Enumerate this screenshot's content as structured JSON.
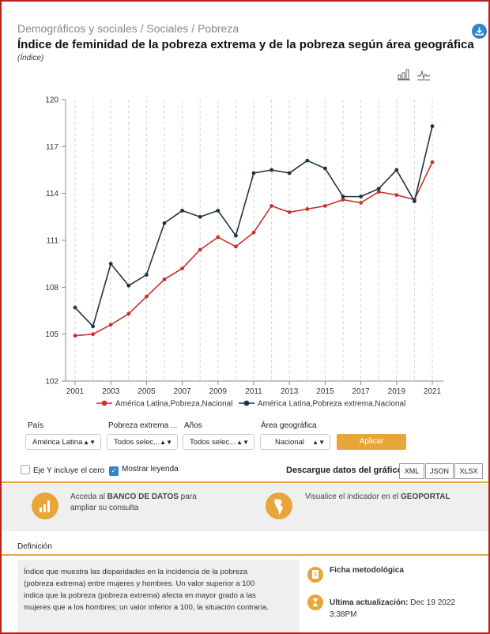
{
  "header": {
    "breadcrumb": "Demográficos y sociales / Sociales / Pobreza",
    "title": "Índice de feminidad de la pobreza extrema y de la pobreza según área geográfica",
    "unit": "(Índice)"
  },
  "colors": {
    "accent": "#e8a53a",
    "brand_blue": "#2e86c9",
    "series_red": "#c8312c",
    "series_dark": "#1f3344",
    "frame_red": "#b8231f"
  },
  "icons": [
    "download-icon",
    "bar-chart-icon",
    "line-chart-icon",
    "bar-chart-icon",
    "americas-map-icon",
    "document-icon",
    "hourglass-icon"
  ],
  "chart_data": {
    "type": "line",
    "title": "",
    "xlabel": "",
    "ylabel": "",
    "x": [
      2001,
      2002,
      2003,
      2004,
      2005,
      2006,
      2007,
      2008,
      2009,
      2010,
      2011,
      2012,
      2013,
      2014,
      2015,
      2016,
      2017,
      2018,
      2019,
      2020,
      2021
    ],
    "x_tick_labels": [
      "2001",
      "2003",
      "2005",
      "2007",
      "2009",
      "2011",
      "2013",
      "2015",
      "2017",
      "2019",
      "2021"
    ],
    "y_tick_labels": [
      "102",
      "105",
      "108",
      "111",
      "114",
      "117",
      "120"
    ],
    "ylim": [
      102,
      120
    ],
    "grid": "vertical dashed",
    "legend_position": "bottom",
    "series": [
      {
        "name": "América Latina,Pobreza,Nacional",
        "color": "#c8312c",
        "values": [
          104.9,
          105.0,
          105.6,
          106.3,
          107.4,
          108.5,
          109.2,
          110.4,
          111.2,
          110.6,
          111.5,
          113.2,
          112.8,
          113.0,
          113.2,
          113.6,
          113.4,
          114.1,
          113.9,
          113.6,
          116.0
        ]
      },
      {
        "name": "América Latina,Pobreza extrema,Nacional",
        "color": "#1f3344",
        "values": [
          106.7,
          105.5,
          109.5,
          108.1,
          108.8,
          112.1,
          112.9,
          112.5,
          112.9,
          111.3,
          115.3,
          115.5,
          115.3,
          116.1,
          115.6,
          113.8,
          113.8,
          114.3,
          115.5,
          113.5,
          118.3
        ]
      }
    ]
  },
  "filters": {
    "labels": [
      "País",
      "Pobreza extrema ...",
      "Años",
      "Área geográfica"
    ],
    "values": [
      "América Latina",
      "Todos selec...",
      "Todos selec...",
      "Nacional"
    ],
    "apply_label": "Aplicar"
  },
  "options": {
    "zero_label": "Eje Y incluye el cero",
    "legend_label": "Mostrar leyenda",
    "legend_checked": true,
    "download_label": "Descargue datos del gráfico:",
    "formats": [
      "XML",
      "JSON",
      "XLSX"
    ]
  },
  "promo": {
    "bank_prefix": "Acceda al ",
    "bank_strong": "BANCO DE DATOS",
    "bank_suffix": " para",
    "bank_line2": "ampliar su consulta",
    "geo_prefix": "Visualice el indicador en el ",
    "geo_strong": "GEOPORTAL"
  },
  "definition": {
    "label": "Definición",
    "lines": [
      "Índice que muestra las disparidades en la incidencia de la pobreza",
      "(pobreza extrema) entre mujeres y hombres. Un valor superior a 100",
      "indica que la pobreza (pobreza extrema) afecta en mayor grado a las",
      "mujeres que a los hombres; un valor inferior a 100, la situación contraria."
    ]
  },
  "sidebar": {
    "ficha": "Ficha metodológica",
    "update_label": "Ultima actualización:",
    "update_date": "Dec 19 2022",
    "update_time": "3:38PM"
  }
}
